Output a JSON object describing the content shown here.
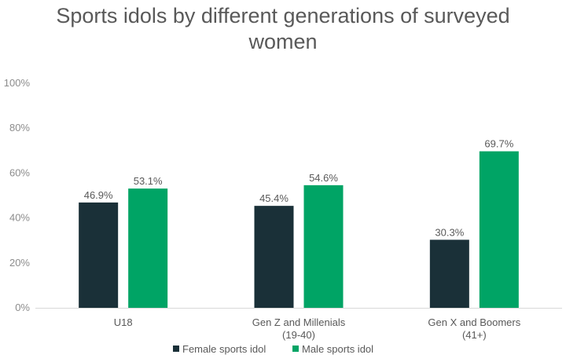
{
  "chart_data": {
    "type": "bar",
    "title": "Sports idols by different generations of surveyed women",
    "categories": [
      [
        "U18"
      ],
      [
        "Gen Z and Millenials",
        "(19-40)"
      ],
      [
        "Gen X and Boomers",
        "(41+)"
      ]
    ],
    "series": [
      {
        "name": "Female sports idol",
        "color": "#1a3038",
        "values": [
          46.9,
          45.4,
          30.3
        ],
        "labels": [
          "46.9%",
          "45.4%",
          "30.3%"
        ]
      },
      {
        "name": "Male sports idol",
        "color": "#00a465",
        "values": [
          53.1,
          54.6,
          69.7
        ],
        "labels": [
          "53.1%",
          "54.6%",
          "69.7%"
        ]
      }
    ],
    "yticks": [
      "0%",
      "20%",
      "40%",
      "60%",
      "80%",
      "100%"
    ],
    "ylim": [
      0,
      100
    ],
    "grid": false,
    "legend_position": "bottom"
  }
}
